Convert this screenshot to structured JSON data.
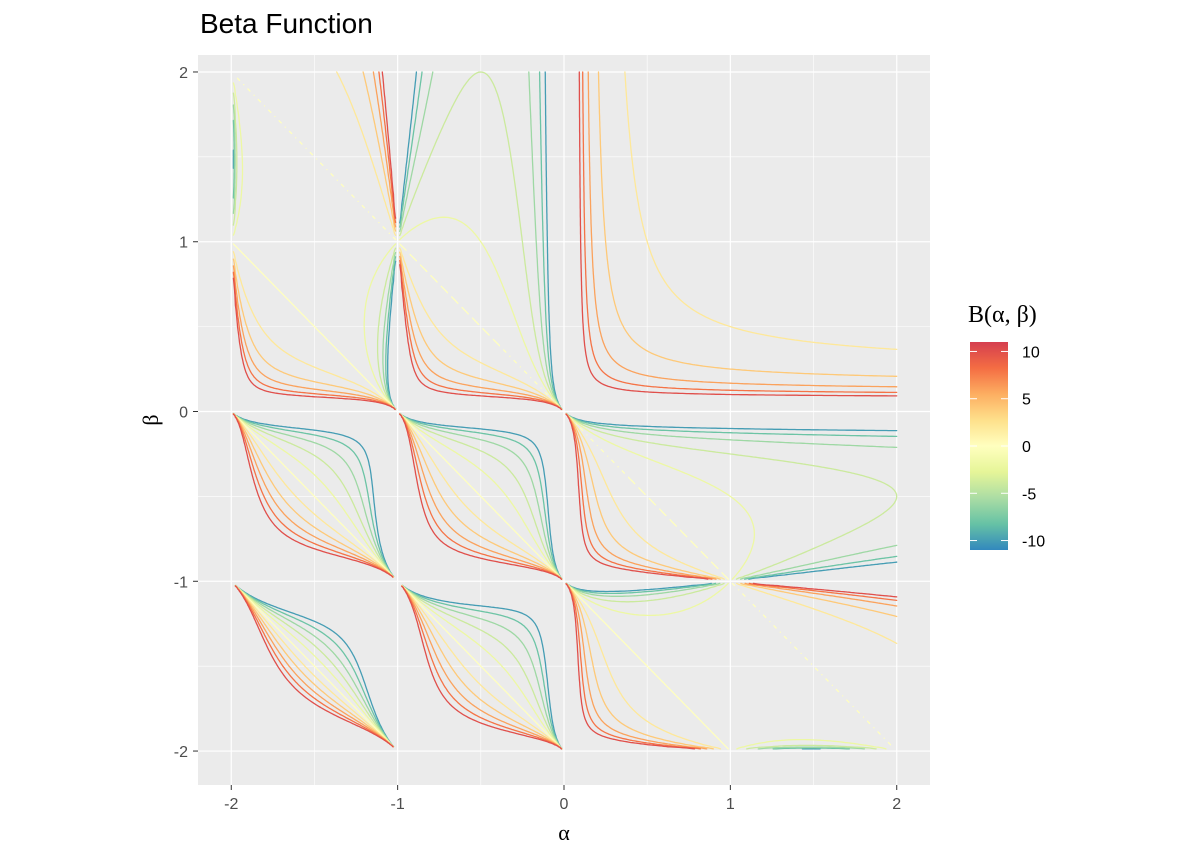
{
  "chart_data": {
    "type": "contour",
    "title": "Beta Function",
    "xlabel": "α",
    "ylabel": "β",
    "xlim": [
      -2.2,
      2.2
    ],
    "ylim": [
      -2.2,
      2.1
    ],
    "x_ticks": [
      -2,
      -1,
      0,
      1,
      2
    ],
    "y_ticks": [
      -2,
      -1,
      0,
      1,
      2
    ],
    "x_tick_labels": [
      "-2",
      "-1",
      "0",
      "1",
      "2"
    ],
    "y_tick_labels": [
      "-2",
      "-1",
      "0",
      "1",
      "2"
    ],
    "grid": true,
    "legend": {
      "title": "B(α, β)",
      "position": "right",
      "ticks": [
        10,
        5,
        0,
        -5,
        -10
      ],
      "tick_labels": [
        "10",
        "5",
        "0",
        "-5",
        "-10"
      ],
      "range": [
        -11,
        11
      ],
      "colors": [
        "#3288BD",
        "#66C2A5",
        "#ABDDA4",
        "#E6F598",
        "#FFFFBF",
        "#FEE08B",
        "#FDAE61",
        "#F46D43",
        "#D53E4F"
      ]
    },
    "levels": [
      -10,
      -8,
      -6,
      -4,
      -2,
      0,
      2,
      4,
      6,
      8,
      10
    ],
    "panel_background": "#EBEBEB",
    "grid_color": "#FFFFFF"
  }
}
